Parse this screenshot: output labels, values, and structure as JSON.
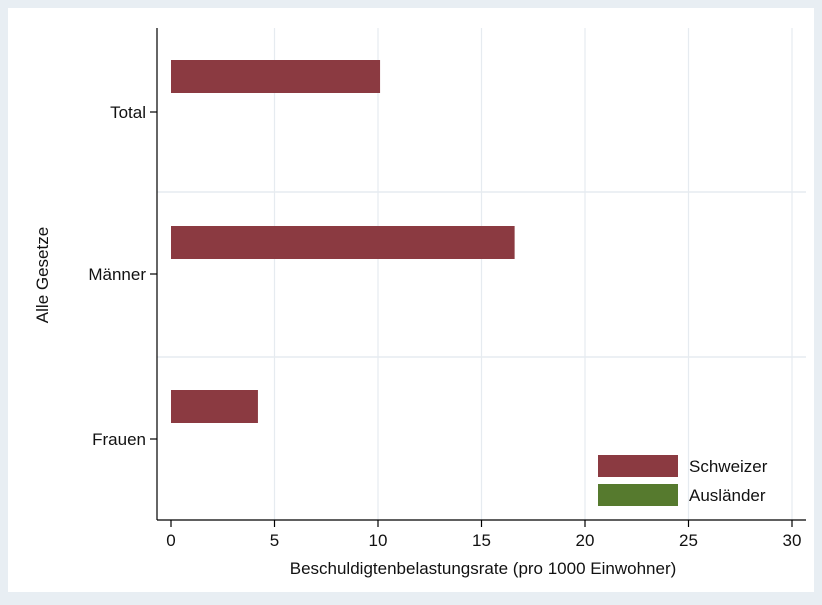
{
  "chart_data": {
    "type": "bar",
    "orientation": "horizontal",
    "ylabel": "Alle Gesetze",
    "xlabel": "Beschuldigtenbelastungsrate (pro 1000 Einwohner)",
    "categories": [
      "Total",
      "Männer",
      "Frauen"
    ],
    "series": [
      {
        "name": "Schweizer",
        "values": [
          10.1,
          16.6,
          4.2
        ],
        "color": "#8b3a41"
      },
      {
        "name": "Ausländer",
        "values": [
          null,
          null,
          null
        ],
        "color": "#567a2e"
      }
    ],
    "xlim": [
      0,
      30
    ],
    "xticks": [
      0,
      5,
      10,
      15,
      20,
      25,
      30
    ],
    "grid": true,
    "legend_position": "bottom-right",
    "colors": {
      "page_bg": "#e8eef3",
      "plot_bg": "#ffffff",
      "grid": "#e6ebf0"
    }
  }
}
